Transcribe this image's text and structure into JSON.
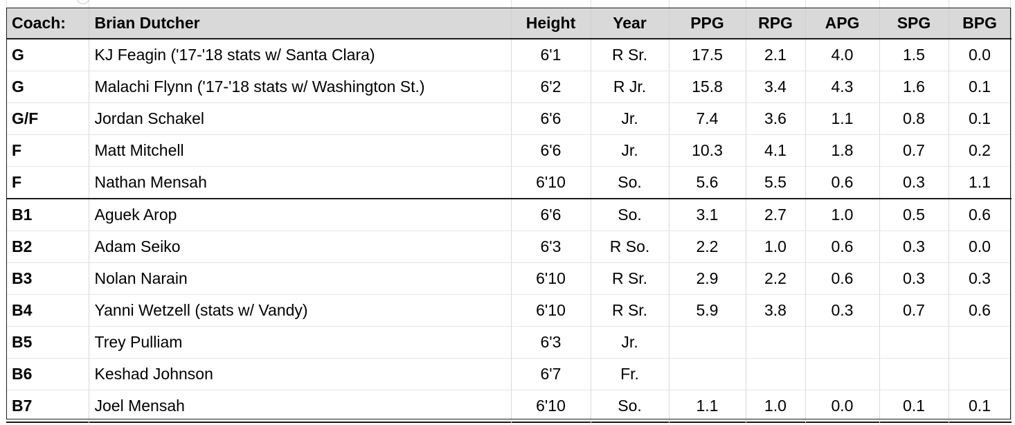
{
  "header": {
    "coach_label": "Coach:",
    "coach_name": "Brian Dutcher",
    "columns": [
      "Height",
      "Year",
      "PPG",
      "RPG",
      "APG",
      "SPG",
      "BPG"
    ]
  },
  "rows": [
    {
      "pos": "G",
      "name": "KJ Feagin ('17-'18 stats w/ Santa Clara)",
      "height": "6'1",
      "year": "R Sr.",
      "ppg": "17.5",
      "rpg": "2.1",
      "apg": "4.0",
      "spg": "1.5",
      "bpg": "0.0"
    },
    {
      "pos": "G",
      "name": "Malachi Flynn ('17-'18 stats w/ Washington St.)",
      "height": "6'2",
      "year": "R Jr.",
      "ppg": "15.8",
      "rpg": "3.4",
      "apg": "4.3",
      "spg": "1.6",
      "bpg": "0.1"
    },
    {
      "pos": "G/F",
      "name": "Jordan Schakel",
      "height": "6'6",
      "year": "Jr.",
      "ppg": "7.4",
      "rpg": "3.6",
      "apg": "1.1",
      "spg": "0.8",
      "bpg": "0.1"
    },
    {
      "pos": "F",
      "name": "Matt Mitchell",
      "height": "6'6",
      "year": "Jr.",
      "ppg": "10.3",
      "rpg": "4.1",
      "apg": "1.8",
      "spg": "0.7",
      "bpg": "0.2"
    },
    {
      "pos": "F",
      "name": "Nathan Mensah",
      "height": "6'10",
      "year": "So.",
      "ppg": "5.6",
      "rpg": "5.5",
      "apg": "0.6",
      "spg": "0.3",
      "bpg": "1.1"
    },
    {
      "pos": "B1",
      "name": "Aguek Arop",
      "height": "6'6",
      "year": "So.",
      "ppg": "3.1",
      "rpg": "2.7",
      "apg": "1.0",
      "spg": "0.5",
      "bpg": "0.6"
    },
    {
      "pos": "B2",
      "name": "Adam Seiko",
      "height": "6'3",
      "year": "R So.",
      "ppg": "2.2",
      "rpg": "1.0",
      "apg": "0.6",
      "spg": "0.3",
      "bpg": "0.0"
    },
    {
      "pos": "B3",
      "name": "Nolan Narain",
      "height": "6'10",
      "year": "R Sr.",
      "ppg": "2.9",
      "rpg": "2.2",
      "apg": "0.6",
      "spg": "0.3",
      "bpg": "0.3"
    },
    {
      "pos": "B4",
      "name": "Yanni Wetzell (stats w/ Vandy)",
      "height": "6'10",
      "year": "R Sr.",
      "ppg": "5.9",
      "rpg": "3.8",
      "apg": "0.3",
      "spg": "0.7",
      "bpg": "0.6"
    },
    {
      "pos": "B5",
      "name": "Trey Pulliam",
      "height": "6'3",
      "year": "Jr.",
      "ppg": "",
      "rpg": "",
      "apg": "",
      "spg": "",
      "bpg": ""
    },
    {
      "pos": "B6",
      "name": "Keshad Johnson",
      "height": "6'7",
      "year": "Fr.",
      "ppg": "",
      "rpg": "",
      "apg": "",
      "spg": "",
      "bpg": ""
    },
    {
      "pos": "B7",
      "name": "Joel Mensah",
      "height": "6'10",
      "year": "So.",
      "ppg": "1.1",
      "rpg": "1.0",
      "apg": "0.0",
      "spg": "0.1",
      "bpg": "0.1"
    }
  ],
  "colors": {
    "header_bg": "#d9d9d9",
    "border_dark": "#1a1a1a",
    "gridline": "#d9d9d9"
  }
}
